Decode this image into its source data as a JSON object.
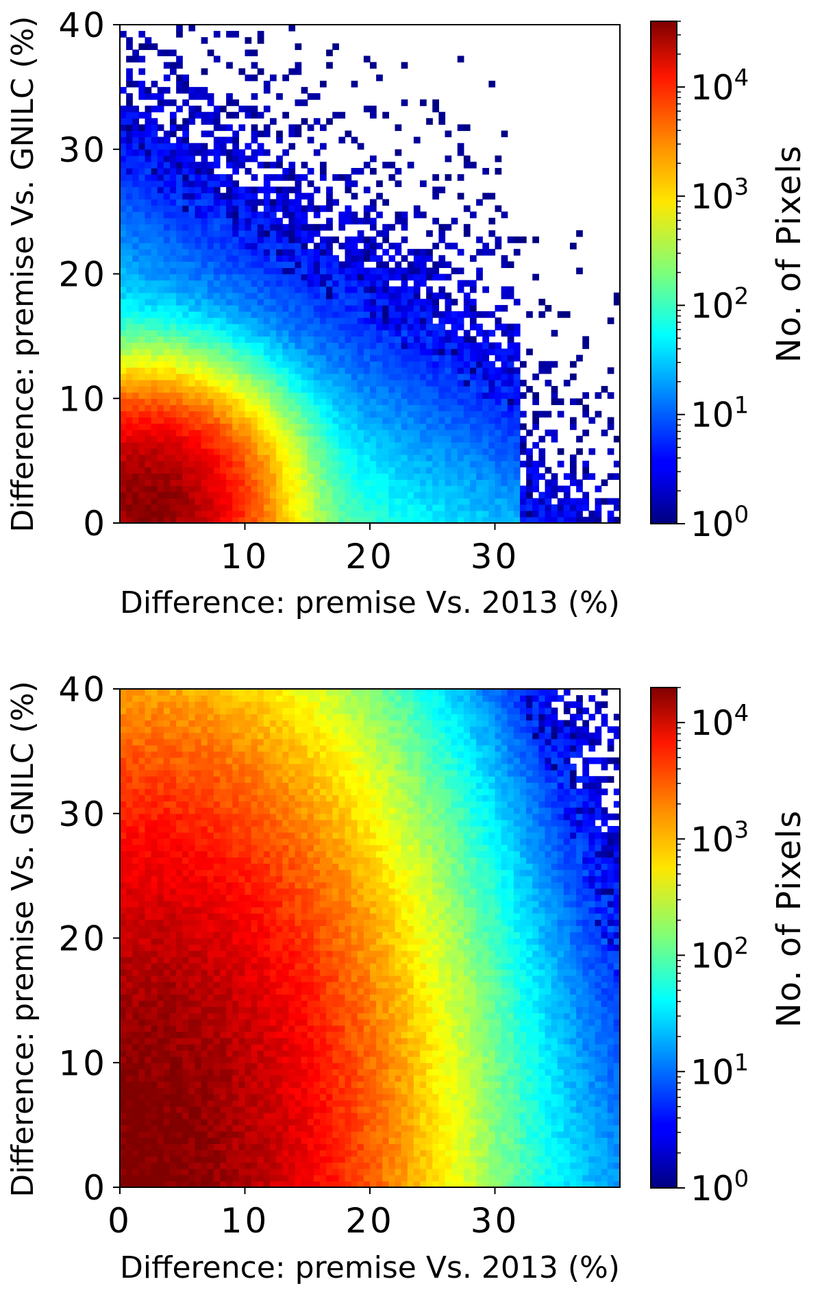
{
  "figure": {
    "panels": 2
  },
  "chart_data": [
    {
      "type": "heatmap",
      "kind": "2d-histogram",
      "panel": "top",
      "xlabel": "Difference: premise Vs. 2013 (%)",
      "ylabel": "Difference: premise Vs. GNILC (%)",
      "xlim": [
        0,
        40
      ],
      "ylim": [
        0,
        40
      ],
      "xticks": [
        10,
        20,
        30
      ],
      "yticks": [
        0,
        10,
        20,
        30,
        40
      ],
      "colorbar": {
        "label": "No. of Pixels",
        "scale": "log",
        "range": [
          1,
          40000
        ],
        "ticks": [
          1,
          10,
          100,
          1000,
          10000
        ],
        "tick_labels": [
          {
            "base": "10",
            "exp": "0"
          },
          {
            "base": "10",
            "exp": "1"
          },
          {
            "base": "10",
            "exp": "2"
          },
          {
            "base": "10",
            "exp": "3"
          },
          {
            "base": "10",
            "exp": "4"
          }
        ]
      },
      "density": {
        "peak": [
          2.0,
          1.5
        ],
        "peak_count": 35000,
        "spread_x": 4.3,
        "spread_y": 4.0,
        "tail_x": 9.5,
        "tail_y": 6.0,
        "sparse_extent_x": 32,
        "sparse_extent_y": 40
      }
    },
    {
      "type": "heatmap",
      "kind": "2d-histogram",
      "panel": "bottom",
      "xlabel": "Difference: premise Vs. 2013 (%)",
      "ylabel": "Difference: premise Vs. GNILC (%)",
      "xlim": [
        0,
        40
      ],
      "ylim": [
        0,
        40
      ],
      "xticks": [
        0,
        10,
        20,
        30
      ],
      "yticks": [
        0,
        10,
        20,
        30,
        40
      ],
      "colorbar": {
        "label": "No. of Pixels",
        "scale": "log",
        "range": [
          1,
          20000
        ],
        "ticks": [
          1,
          10,
          100,
          1000,
          10000
        ],
        "tick_labels": [
          {
            "base": "10",
            "exp": "0"
          },
          {
            "base": "10",
            "exp": "1"
          },
          {
            "base": "10",
            "exp": "2"
          },
          {
            "base": "10",
            "exp": "3"
          },
          {
            "base": "10",
            "exp": "4"
          }
        ]
      },
      "density": {
        "peak": [
          1.5,
          2.0
        ],
        "peak_count": 20000,
        "spread_x": 9.0,
        "spread_y": 16.0,
        "tail_x": 12.0,
        "tail_y": 14.0,
        "sparse_extent_x": 40,
        "sparse_extent_y": 40
      }
    }
  ]
}
